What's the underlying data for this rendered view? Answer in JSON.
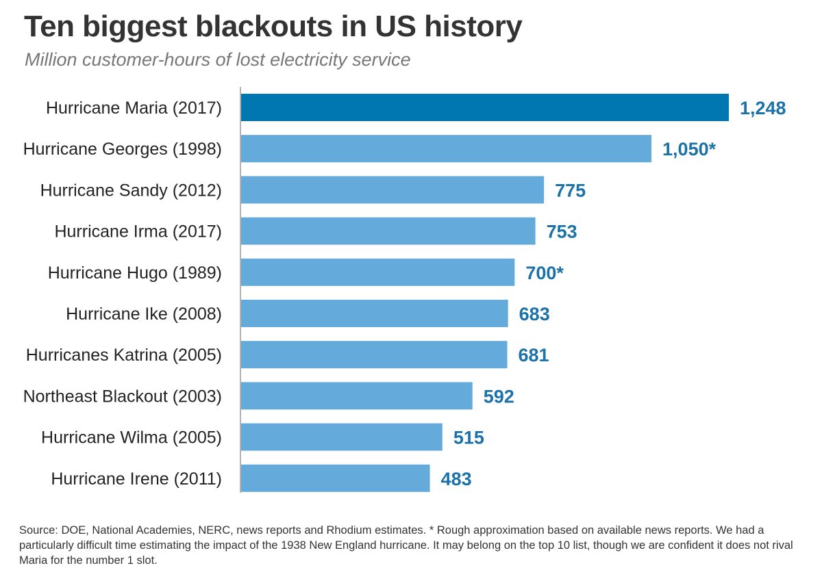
{
  "chart_data": {
    "type": "bar",
    "orientation": "horizontal",
    "title": "Ten biggest blackouts in US history",
    "subtitle": "Million customer-hours of lost electricity service",
    "categories": [
      "Hurricane Maria (2017)",
      "Hurricane Georges (1998)",
      "Hurricane Sandy (2012)",
      "Hurricane Irma (2017)",
      "Hurricane Hugo (1989)",
      "Hurricane Ike (2008)",
      "Hurricanes Katrina (2005)",
      "Northeast Blackout (2003)",
      "Hurricane Wilma (2005)",
      "Hurricane Irene (2011)"
    ],
    "values": [
      1248,
      1050,
      775,
      753,
      700,
      683,
      681,
      592,
      515,
      483
    ],
    "value_labels": [
      "1,248",
      "1,050*",
      "775",
      "753",
      "700*",
      "683",
      "681",
      "592",
      "515",
      "483"
    ],
    "xlim": [
      0,
      1248
    ],
    "grid": false,
    "colors": {
      "highlight_bar": "#0077b0",
      "bar": "#64aadb",
      "value_text": "#1a72a8",
      "axis": "#999999"
    },
    "highlight_index": 0
  },
  "footer": {
    "source": "Source: DOE, National Academies, NERC, news reports and Rhodium estimates. * Rough approximation based on available news reports. We had a particularly difficult time estimating the impact of the 1938 New England hurricane. It may belong on the top 10 list, though we are confident it does not rival Maria for the number 1 slot."
  }
}
